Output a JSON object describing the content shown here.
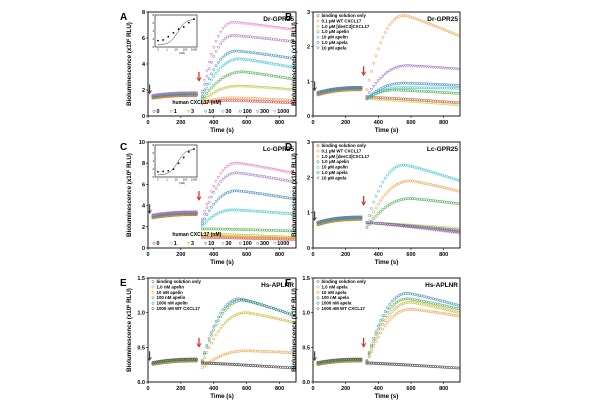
{
  "figure": {
    "panels": [
      {
        "id": "A",
        "letter": "A",
        "title": "Dr-GPR25",
        "xlabel": "Time (s)",
        "ylabel": "Bioluminescence (x10",
        "ylabel_exp": "6",
        "ylabel_tail": " RLU)",
        "xlim": [
          0,
          900
        ],
        "ylim": [
          0,
          8
        ],
        "xticks": [
          "0",
          "200",
          "400",
          "600",
          "800"
        ],
        "yticks": [
          "0",
          "2",
          "4",
          "6",
          "8"
        ],
        "legend_position": "bottom",
        "legend_title": "human CXCL17 (nM)",
        "inset": {
          "present": true,
          "x_ticks": [
            "0",
            "1",
            "10",
            "100",
            "1000"
          ],
          "y_ticks": [
            "0",
            "2",
            "4",
            "6",
            "8"
          ],
          "xlabel": "(nM)"
        }
      },
      {
        "id": "B",
        "letter": "B",
        "title": "Dr-GPR25",
        "xlabel": "Time (s)",
        "ylabel": "Bioluminescence (x10",
        "ylabel_exp": "6",
        "ylabel_tail": " RLU)",
        "xlim": [
          0,
          900
        ],
        "ylim": [
          0,
          3
        ],
        "xticks": [
          "0",
          "200",
          "400",
          "600",
          "800"
        ],
        "yticks": [
          "0",
          "1",
          "2",
          "3"
        ],
        "legend_position": "top-left",
        "inset": {
          "present": false
        }
      },
      {
        "id": "C",
        "letter": "C",
        "title": "Lc-GPR25",
        "xlabel": "Time (s)",
        "ylabel": "Bioluminescence (x10",
        "ylabel_exp": "6",
        "ylabel_tail": " RLU)",
        "xlim": [
          0,
          900
        ],
        "ylim": [
          0,
          10
        ],
        "xticks": [
          "0",
          "200",
          "400",
          "600",
          "800"
        ],
        "yticks": [
          "0",
          "2",
          "4",
          "6",
          "8",
          "10"
        ],
        "legend_position": "bottom",
        "legend_title": "human CXCL17 (nM)",
        "inset": {
          "present": true,
          "x_ticks": [
            "0",
            "1",
            "10",
            "100",
            "1000"
          ],
          "y_ticks": [
            "0",
            "2",
            "4",
            "6",
            "8"
          ],
          "xlabel": "(nM)"
        }
      },
      {
        "id": "D",
        "letter": "D",
        "title": "Lc-GPR25",
        "xlabel": "Time (s)",
        "ylabel": "Bioluminescence (x10",
        "ylabel_exp": "6",
        "ylabel_tail": " RLU)",
        "xlim": [
          0,
          900
        ],
        "ylim": [
          0,
          3
        ],
        "xticks": [
          "0",
          "200",
          "400",
          "600",
          "800"
        ],
        "yticks": [
          "0",
          "1",
          "2",
          "3"
        ],
        "legend_position": "top-left",
        "inset": {
          "present": false
        }
      },
      {
        "id": "E",
        "letter": "E",
        "title": "Hs-APLNR",
        "xlabel": "Time (s)",
        "ylabel": "Bioluminescence (x10",
        "ylabel_exp": "6",
        "ylabel_tail": " RLU)",
        "xlim": [
          0,
          900
        ],
        "ylim": [
          0,
          1.5
        ],
        "xticks": [
          "0",
          "200",
          "400",
          "600",
          "800"
        ],
        "yticks": [
          "0.0",
          "0.5",
          "1.0",
          "1.5"
        ],
        "legend_position": "top-left",
        "inset": {
          "present": false
        }
      },
      {
        "id": "F",
        "letter": "F",
        "title": "Hs-APLNR",
        "xlabel": "Time (s)",
        "ylabel": "Bioluminescence (x10",
        "ylabel_exp": "6",
        "ylabel_tail": " RLU)",
        "xlim": [
          0,
          900
        ],
        "ylim": [
          0,
          1.5
        ],
        "xticks": [
          "0",
          "200",
          "400",
          "600",
          "800"
        ],
        "yticks": [
          "0.0",
          "0.5",
          "1.0",
          "1.5"
        ],
        "legend_position": "top-left",
        "inset": {
          "present": false
        }
      }
    ]
  },
  "chart_data": [
    {
      "panel": "A",
      "type": "scatter",
      "title": "Dr-GPR25",
      "xlabel": "Time (s)",
      "ylabel": "Bioluminescence (x10^6 RLU)",
      "xlim": [
        0,
        900
      ],
      "ylim": [
        0,
        8
      ],
      "grid": false,
      "baseline": {
        "x": [
          30,
          300
        ],
        "y": [
          1.5,
          1.7
        ]
      },
      "series": [
        {
          "name": "0",
          "color": "#d62728",
          "marker": "o",
          "peak": 1.2,
          "peak_t": 500,
          "end": 1.0
        },
        {
          "name": "1",
          "color": "#f28e2b",
          "marker": "o",
          "peak": 1.4,
          "peak_t": 520,
          "end": 1.2
        },
        {
          "name": "3",
          "color": "#bcbd22",
          "marker": "v",
          "peak": 2.3,
          "peak_t": 560,
          "end": 2.0
        },
        {
          "name": "10",
          "color": "#2ca02c",
          "marker": "o",
          "peak": 3.4,
          "peak_t": 580,
          "end": 2.8
        },
        {
          "name": "30",
          "color": "#17becf",
          "marker": "o",
          "peak": 4.4,
          "peak_t": 560,
          "end": 3.7
        },
        {
          "name": "100",
          "color": "#1f77b4",
          "marker": "o",
          "peak": 5.0,
          "peak_t": 540,
          "end": 4.4
        },
        {
          "name": "300",
          "color": "#9467bd",
          "marker": "o",
          "peak": 6.2,
          "peak_t": 520,
          "end": 5.7
        },
        {
          "name": "1000",
          "color": "#e377c2",
          "marker": "v",
          "peak": 7.2,
          "peak_t": 520,
          "end": 6.6
        }
      ]
    },
    {
      "panel": "B",
      "type": "scatter",
      "title": "Dr-GPR25",
      "xlabel": "Time (s)",
      "ylabel": "Bioluminescence (x10^6 RLU)",
      "xlim": [
        0,
        900
      ],
      "ylim": [
        0,
        3
      ],
      "grid": false,
      "baseline": {
        "x": [
          30,
          300
        ],
        "y": [
          0.65,
          0.8
        ]
      },
      "series": [
        {
          "name": "binding solution only",
          "color": "#d62728",
          "marker": "o",
          "peak": 0.55,
          "peak_t": 320,
          "end": 0.38
        },
        {
          "name": "0.1 μM WT CXCL17",
          "color": "#f28e2b",
          "marker": "o",
          "peak": 2.9,
          "peak_t": 560,
          "end": 2.3
        },
        {
          "name": "1.0 μM [desC3]CXCL17",
          "color": "#bcbd22",
          "marker": "o",
          "peak": 0.5,
          "peak_t": 330,
          "end": 0.32
        },
        {
          "name": "1.0 μM apelin",
          "color": "#2ca02c",
          "marker": "o",
          "peak": 0.75,
          "peak_t": 500,
          "end": 0.65
        },
        {
          "name": "10 μM apelin",
          "color": "#17becf",
          "marker": "o",
          "peak": 0.82,
          "peak_t": 540,
          "end": 0.8
        },
        {
          "name": "1.0 μM apela",
          "color": "#1f77b4",
          "marker": "o",
          "peak": 0.95,
          "peak_t": 560,
          "end": 0.88
        },
        {
          "name": "10 μM apela",
          "color": "#9467bd",
          "marker": "v",
          "peak": 1.45,
          "peak_t": 580,
          "end": 1.35
        }
      ]
    },
    {
      "panel": "C",
      "type": "scatter",
      "title": "Lc-GPR25",
      "xlabel": "Time (s)",
      "ylabel": "Bioluminescence (x10^6 RLU)",
      "xlim": [
        0,
        900
      ],
      "ylim": [
        0,
        10
      ],
      "grid": false,
      "baseline": {
        "x": [
          30,
          300
        ],
        "y": [
          3.0,
          3.3
        ]
      },
      "series": [
        {
          "name": "0",
          "color": "#d62728",
          "marker": "o",
          "peak": 1.0,
          "peak_t": 350,
          "end": 0.8
        },
        {
          "name": "1",
          "color": "#f28e2b",
          "marker": "o",
          "peak": 1.1,
          "peak_t": 360,
          "end": 0.9
        },
        {
          "name": "3",
          "color": "#bcbd22",
          "marker": "v",
          "peak": 1.3,
          "peak_t": 380,
          "end": 1.0
        },
        {
          "name": "10",
          "color": "#2ca02c",
          "marker": "o",
          "peak": 1.8,
          "peak_t": 400,
          "end": 1.6
        },
        {
          "name": "30",
          "color": "#17becf",
          "marker": "o",
          "peak": 3.6,
          "peak_t": 520,
          "end": 3.2
        },
        {
          "name": "100",
          "color": "#1f77b4",
          "marker": "o",
          "peak": 5.4,
          "peak_t": 540,
          "end": 4.6
        },
        {
          "name": "300",
          "color": "#9467bd",
          "marker": "o",
          "peak": 7.1,
          "peak_t": 540,
          "end": 6.2
        },
        {
          "name": "1000",
          "color": "#e377c2",
          "marker": "v",
          "peak": 8.0,
          "peak_t": 540,
          "end": 7.0
        }
      ]
    },
    {
      "panel": "D",
      "type": "scatter",
      "title": "Lc-GPR25",
      "xlabel": "Time (s)",
      "ylabel": "Bioluminescence (x10^6 RLU)",
      "xlim": [
        0,
        900
      ],
      "ylim": [
        0,
        3
      ],
      "grid": false,
      "baseline": {
        "x": [
          30,
          300
        ],
        "y": [
          0.7,
          0.85
        ]
      },
      "series": [
        {
          "name": "binding solution only",
          "color": "#d62728",
          "marker": "o",
          "peak": 0.72,
          "peak_t": 320,
          "end": 0.45
        },
        {
          "name": "0.1 μM WT CXCL17",
          "color": "#f28e2b",
          "marker": "o",
          "peak": 1.9,
          "peak_t": 600,
          "end": 1.6
        },
        {
          "name": "1.0 μM [desC3]CXCL17",
          "color": "#bcbd22",
          "marker": "o",
          "peak": 0.72,
          "peak_t": 320,
          "end": 0.55
        },
        {
          "name": "1.0 μM apelin",
          "color": "#2ca02c",
          "marker": "o",
          "peak": 1.4,
          "peak_t": 600,
          "end": 1.25
        },
        {
          "name": "10 μM apelin",
          "color": "#17becf",
          "marker": "o",
          "peak": 2.35,
          "peak_t": 560,
          "end": 1.9
        },
        {
          "name": "1.0 μM apela",
          "color": "#1f77b4",
          "marker": "o",
          "peak": 0.72,
          "peak_t": 320,
          "end": 0.5
        },
        {
          "name": "10 μM apela",
          "color": "#9467bd",
          "marker": "v",
          "peak": 0.72,
          "peak_t": 320,
          "end": 0.42
        }
      ]
    },
    {
      "panel": "E",
      "type": "scatter",
      "title": "Hs-APLNR",
      "xlabel": "Time (s)",
      "ylabel": "Bioluminescence (x10^6 RLU)",
      "xlim": [
        0,
        900
      ],
      "ylim": [
        0,
        1.5
      ],
      "grid": false,
      "baseline": {
        "x": [
          30,
          300
        ],
        "y": [
          0.27,
          0.32
        ]
      },
      "series": [
        {
          "name": "binding solution only",
          "color": "#555555",
          "marker": "o",
          "peak": 0.28,
          "peak_t": 320,
          "end": 0.2
        },
        {
          "name": "1.0 nM apelin",
          "color": "#f28e2b",
          "marker": "o",
          "peak": 0.45,
          "peak_t": 600,
          "end": 0.42
        },
        {
          "name": "10 nM apelin",
          "color": "#c9a400",
          "marker": "o",
          "peak": 1.0,
          "peak_t": 600,
          "end": 0.85
        },
        {
          "name": "100 nM apelin",
          "color": "#2ca02c",
          "marker": "o",
          "peak": 1.18,
          "peak_t": 580,
          "end": 0.95
        },
        {
          "name": "1000 nM apelin",
          "color": "#1f77b4",
          "marker": "o",
          "peak": 1.2,
          "peak_t": 560,
          "end": 0.95
        },
        {
          "name": "1000 nM WT CXCL17",
          "color": "#4a4a4a",
          "marker": "o",
          "peak": 0.27,
          "peak_t": 320,
          "end": 0.2
        }
      ]
    },
    {
      "panel": "F",
      "type": "scatter",
      "title": "Hs-APLNR",
      "xlabel": "Time (s)",
      "ylabel": "Bioluminescence (x10^6 RLU)",
      "xlim": [
        0,
        900
      ],
      "ylim": [
        0,
        1.5
      ],
      "grid": false,
      "baseline": {
        "x": [
          30,
          300
        ],
        "y": [
          0.27,
          0.32
        ]
      },
      "series": [
        {
          "name": "binding solution only",
          "color": "#555555",
          "marker": "o",
          "peak": 0.28,
          "peak_t": 320,
          "end": 0.2
        },
        {
          "name": "1.0 nM apela",
          "color": "#f28e2b",
          "marker": "o",
          "peak": 1.05,
          "peak_t": 600,
          "end": 0.95
        },
        {
          "name": "10 nM apela",
          "color": "#c9a400",
          "marker": "o",
          "peak": 1.15,
          "peak_t": 600,
          "end": 1.0
        },
        {
          "name": "100 nM apela",
          "color": "#2ca02c",
          "marker": "o",
          "peak": 1.2,
          "peak_t": 580,
          "end": 1.05
        },
        {
          "name": "1000 nM apela",
          "color": "#1f77b4",
          "marker": "o",
          "peak": 1.28,
          "peak_t": 580,
          "end": 1.1
        },
        {
          "name": "1000 nM WT CXCL17",
          "color": "#4a4a4a",
          "marker": "o",
          "peak": 0.27,
          "peak_t": 320,
          "end": 0.2
        }
      ]
    }
  ],
  "colors": {
    "start_arrow": "#333333",
    "injection_arrow": "#e0201a"
  }
}
